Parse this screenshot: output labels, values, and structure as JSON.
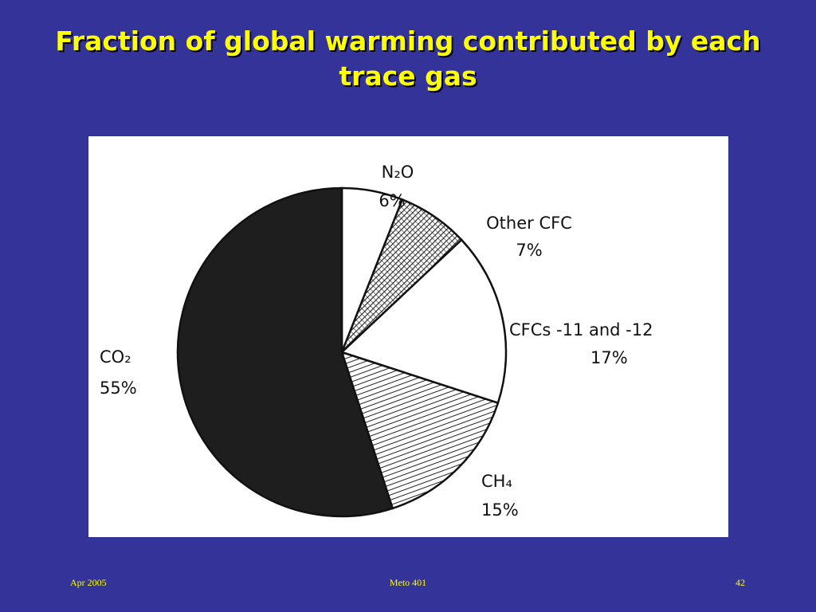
{
  "slide": {
    "title": "Fraction of global warming contributed by each trace gas",
    "background_color": "#333399",
    "title_color": "#ffff00"
  },
  "chart_data": {
    "type": "pie",
    "title": "",
    "slices": [
      {
        "name": "N₂O",
        "label_line1": "N₂O",
        "label_line2": "6%",
        "value": 6,
        "fill": "white"
      },
      {
        "name": "Other CFC",
        "label_line1": "Other CFC",
        "label_line2": "7%",
        "value": 7,
        "fill": "crosshatch"
      },
      {
        "name": "CFCs -11 and -12",
        "label_line1": "CFCs -11 and -12",
        "label_line2": "17%",
        "value": 17,
        "fill": "white"
      },
      {
        "name": "CH₄",
        "label_line1": "CH₄",
        "label_line2": "15%",
        "value": 15,
        "fill": "hatched"
      },
      {
        "name": "CO₂",
        "label_line1": "CO₂",
        "label_line2": "55%",
        "value": 55,
        "fill": "black"
      }
    ]
  },
  "footer": {
    "left": "Apr 2005",
    "center": "Meto 401",
    "right": "42"
  }
}
